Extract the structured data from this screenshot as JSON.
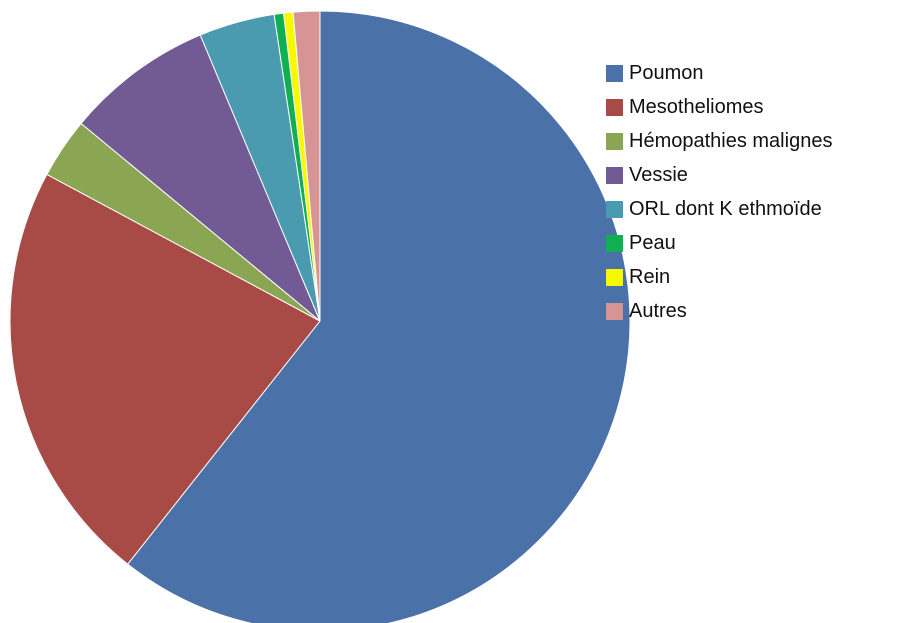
{
  "chart_data": {
    "type": "pie",
    "categories": [
      "Poumon",
      "Mesotheliomes",
      "Hémopathies malignes",
      "Vessie",
      "ORL dont K ethmoïde",
      "Peau",
      "Rein",
      "Autres"
    ],
    "values": [
      61.5,
      22.5,
      3.2,
      7.8,
      4.0,
      0.5,
      0.5,
      1.4
    ],
    "unit": "",
    "colors": [
      "#4a72a8",
      "#a84a45",
      "#8aa653",
      "#725a94",
      "#4a9ab0",
      "#10b050",
      "#f8f800",
      "#d69594"
    ],
    "start_angle_deg": 0,
    "direction": "clockwise",
    "legend_position": "right",
    "title": ""
  }
}
